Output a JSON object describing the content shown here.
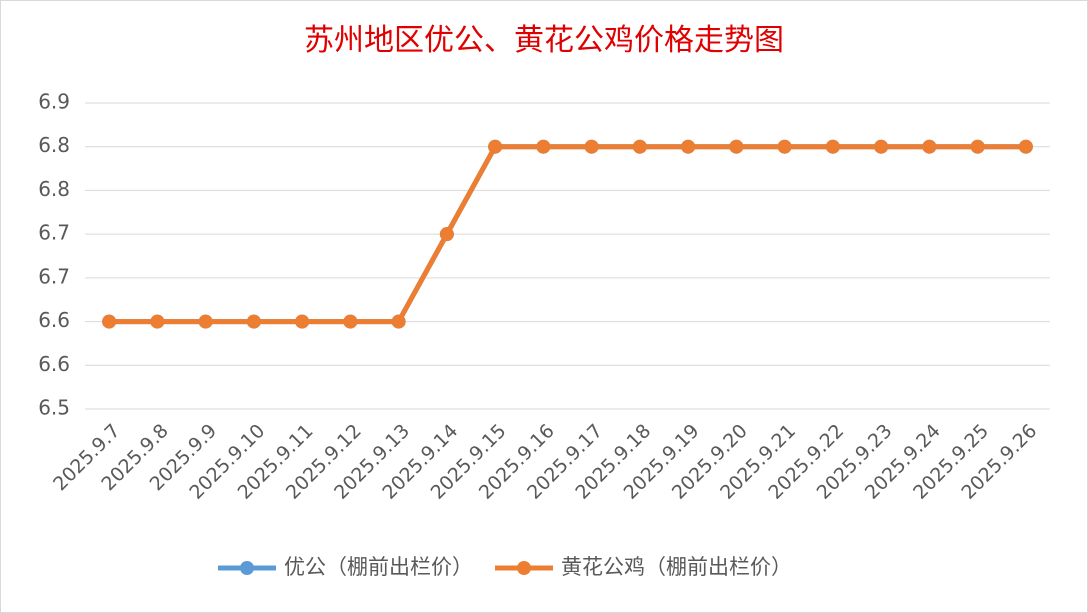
{
  "chart_data": {
    "type": "line",
    "title": "苏州地区优公、黄花公鸡价格走势图",
    "categories": [
      "2025.9.7",
      "2025.9.8",
      "2025.9.9",
      "2025.9.10",
      "2025.9.11",
      "2025.9.12",
      "2025.9.13",
      "2025.9.14",
      "2025.9.15",
      "2025.9.16",
      "2025.9.17",
      "2025.9.18",
      "2025.9.19",
      "2025.9.20",
      "2025.9.21",
      "2025.9.22",
      "2025.9.23",
      "2025.9.24",
      "2025.9.25",
      "2025.9.26"
    ],
    "series": [
      {
        "name": "优公（棚前出栏价）",
        "color": "#5b9bd5",
        "values": [
          6.6,
          6.6,
          6.6,
          6.6,
          6.6,
          6.6,
          6.6,
          6.7,
          6.8,
          6.8,
          6.8,
          6.8,
          6.8,
          6.8,
          6.8,
          6.8,
          6.8,
          6.8,
          6.8,
          6.8
        ]
      },
      {
        "name": "黄花公鸡（棚前出栏价）",
        "color": "#ed7d31",
        "values": [
          6.6,
          6.6,
          6.6,
          6.6,
          6.6,
          6.6,
          6.6,
          6.7,
          6.8,
          6.8,
          6.8,
          6.8,
          6.8,
          6.8,
          6.8,
          6.8,
          6.8,
          6.8,
          6.8,
          6.8
        ]
      }
    ],
    "ylim": [
      6.5,
      6.85
    ],
    "yticks": [
      6.5,
      {
        "value": 6.55,
        "label": "6.6"
      },
      6.6,
      {
        "value": 6.65,
        "label": "6.7"
      },
      6.7,
      {
        "value": 6.75,
        "label": "6.8"
      },
      6.8,
      {
        "value": 6.85,
        "label": "6.9"
      }
    ],
    "grid": true,
    "legend": "bottom"
  }
}
